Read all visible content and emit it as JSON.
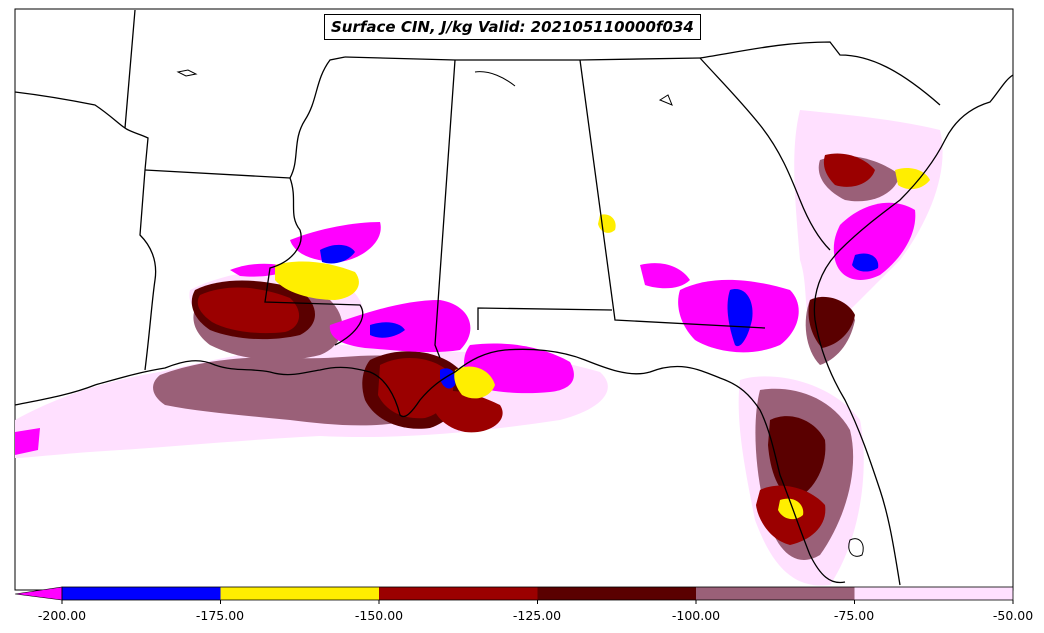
{
  "title": "Surface CIN, J/kg Valid: 202105110000f034",
  "colorbar": {
    "levels": [
      "-200.00",
      "-175.00",
      "-150.00",
      "-125.00",
      "-100.00",
      "-75.00",
      "-50.00"
    ],
    "colors": [
      "#0000ff",
      "#ffee00",
      "#9b0000",
      "#5a0000",
      "#9a6078",
      "#ffe0ff"
    ],
    "extend_color": "#ff00ff"
  },
  "field_colors": {
    "magenta": "#ff00ff",
    "blue": "#0000ff",
    "yellow": "#ffee00",
    "red": "#9b0000",
    "darkred": "#5a0000",
    "mauve": "#9a6078",
    "pink": "#ffe0ff"
  }
}
